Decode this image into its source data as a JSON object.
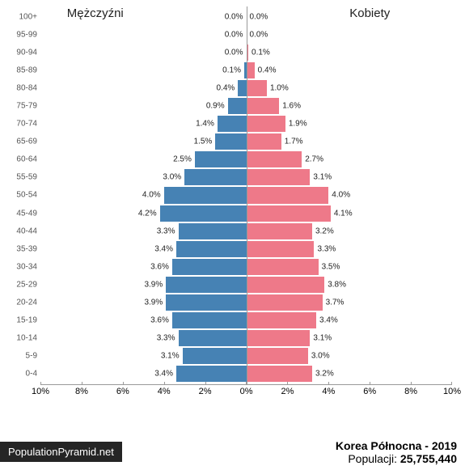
{
  "chart": {
    "type": "population-pyramid",
    "header_male": "Mężczyźni",
    "header_female": "Kobiety",
    "male_color": "#4682b4",
    "female_color": "#ee7989",
    "label_fontsize": 10,
    "axis_fontsize": 11,
    "xmax_pct": 10,
    "xtick_step": 2,
    "xticks_male": [
      "10%",
      "8%",
      "6%",
      "4%",
      "2%"
    ],
    "xticks_female": [
      "2%",
      "4%",
      "6%",
      "8%",
      "10%"
    ],
    "center_label": "0%",
    "age_groups": [
      {
        "label": "100+",
        "male": 0.0,
        "female": 0.0,
        "male_str": "0.0%",
        "female_str": "0.0%"
      },
      {
        "label": "95-99",
        "male": 0.0,
        "female": 0.0,
        "male_str": "0.0%",
        "female_str": "0.0%"
      },
      {
        "label": "90-94",
        "male": 0.0,
        "female": 0.1,
        "male_str": "0.0%",
        "female_str": "0.1%"
      },
      {
        "label": "85-89",
        "male": 0.1,
        "female": 0.4,
        "male_str": "0.1%",
        "female_str": "0.4%"
      },
      {
        "label": "80-84",
        "male": 0.4,
        "female": 1.0,
        "male_str": "0.4%",
        "female_str": "1.0%"
      },
      {
        "label": "75-79",
        "male": 0.9,
        "female": 1.6,
        "male_str": "0.9%",
        "female_str": "1.6%"
      },
      {
        "label": "70-74",
        "male": 1.4,
        "female": 1.9,
        "male_str": "1.4%",
        "female_str": "1.9%"
      },
      {
        "label": "65-69",
        "male": 1.5,
        "female": 1.7,
        "male_str": "1.5%",
        "female_str": "1.7%"
      },
      {
        "label": "60-64",
        "male": 2.5,
        "female": 2.7,
        "male_str": "2.5%",
        "female_str": "2.7%"
      },
      {
        "label": "55-59",
        "male": 3.0,
        "female": 3.1,
        "male_str": "3.0%",
        "female_str": "3.1%"
      },
      {
        "label": "50-54",
        "male": 4.0,
        "female": 4.0,
        "male_str": "4.0%",
        "female_str": "4.0%"
      },
      {
        "label": "45-49",
        "male": 4.2,
        "female": 4.1,
        "male_str": "4.2%",
        "female_str": "4.1%"
      },
      {
        "label": "40-44",
        "male": 3.3,
        "female": 3.2,
        "male_str": "3.3%",
        "female_str": "3.2%"
      },
      {
        "label": "35-39",
        "male": 3.4,
        "female": 3.3,
        "male_str": "3.4%",
        "female_str": "3.3%"
      },
      {
        "label": "30-34",
        "male": 3.6,
        "female": 3.5,
        "male_str": "3.6%",
        "female_str": "3.5%"
      },
      {
        "label": "25-29",
        "male": 3.9,
        "female": 3.8,
        "male_str": "3.9%",
        "female_str": "3.8%"
      },
      {
        "label": "20-24",
        "male": 3.9,
        "female": 3.7,
        "male_str": "3.9%",
        "female_str": "3.7%"
      },
      {
        "label": "15-19",
        "male": 3.6,
        "female": 3.4,
        "male_str": "3.6%",
        "female_str": "3.4%"
      },
      {
        "label": "10-14",
        "male": 3.3,
        "female": 3.1,
        "male_str": "3.3%",
        "female_str": "3.1%"
      },
      {
        "label": "5-9",
        "male": 3.1,
        "female": 3.0,
        "male_str": "3.1%",
        "female_str": "3.0%"
      },
      {
        "label": "0-4",
        "male": 3.4,
        "female": 3.2,
        "male_str": "3.4%",
        "female_str": "3.2%"
      }
    ]
  },
  "footer": {
    "country": "Korea Północna",
    "year": "2019",
    "title": "Korea Północna - 2019",
    "pop_label": "Populacji:",
    "pop_value": "25,755,440"
  },
  "badge": "PopulationPyramid.net"
}
